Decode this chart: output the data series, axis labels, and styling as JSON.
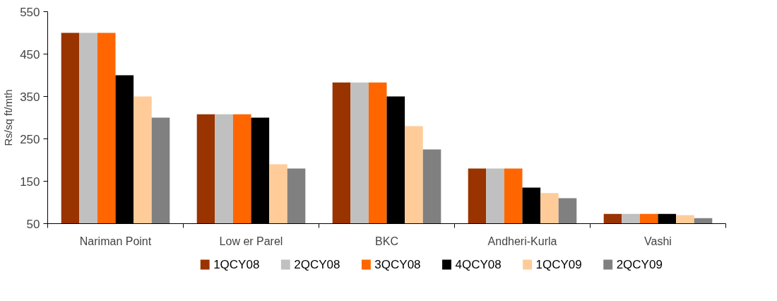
{
  "chart_data": {
    "type": "bar",
    "ylabel": "Rs/sq ft/mth",
    "categories": [
      "Nariman Point",
      "Low er Parel",
      "BKC",
      "Andheri-Kurla",
      "Vashi"
    ],
    "ylim": [
      50,
      550
    ],
    "yticks": [
      50,
      150,
      250,
      350,
      450,
      550
    ],
    "grid": false,
    "legend": "bottom",
    "series": [
      {
        "name": "1QCY08",
        "color": "#993300",
        "values": [
          500,
          308,
          383,
          180,
          73
        ]
      },
      {
        "name": "2QCY08",
        "color": "#c0c0c0",
        "values": [
          500,
          308,
          383,
          180,
          73
        ]
      },
      {
        "name": "3QCY08",
        "color": "#ff6600",
        "values": [
          500,
          308,
          383,
          180,
          73
        ]
      },
      {
        "name": "4QCY08",
        "color": "#000000",
        "values": [
          400,
          300,
          350,
          135,
          73
        ]
      },
      {
        "name": "1QCY09",
        "color": "#ffcc99",
        "values": [
          350,
          190,
          280,
          122,
          70
        ]
      },
      {
        "name": "2QCY09",
        "color": "#808080",
        "values": [
          300,
          180,
          225,
          110,
          63
        ]
      }
    ]
  }
}
